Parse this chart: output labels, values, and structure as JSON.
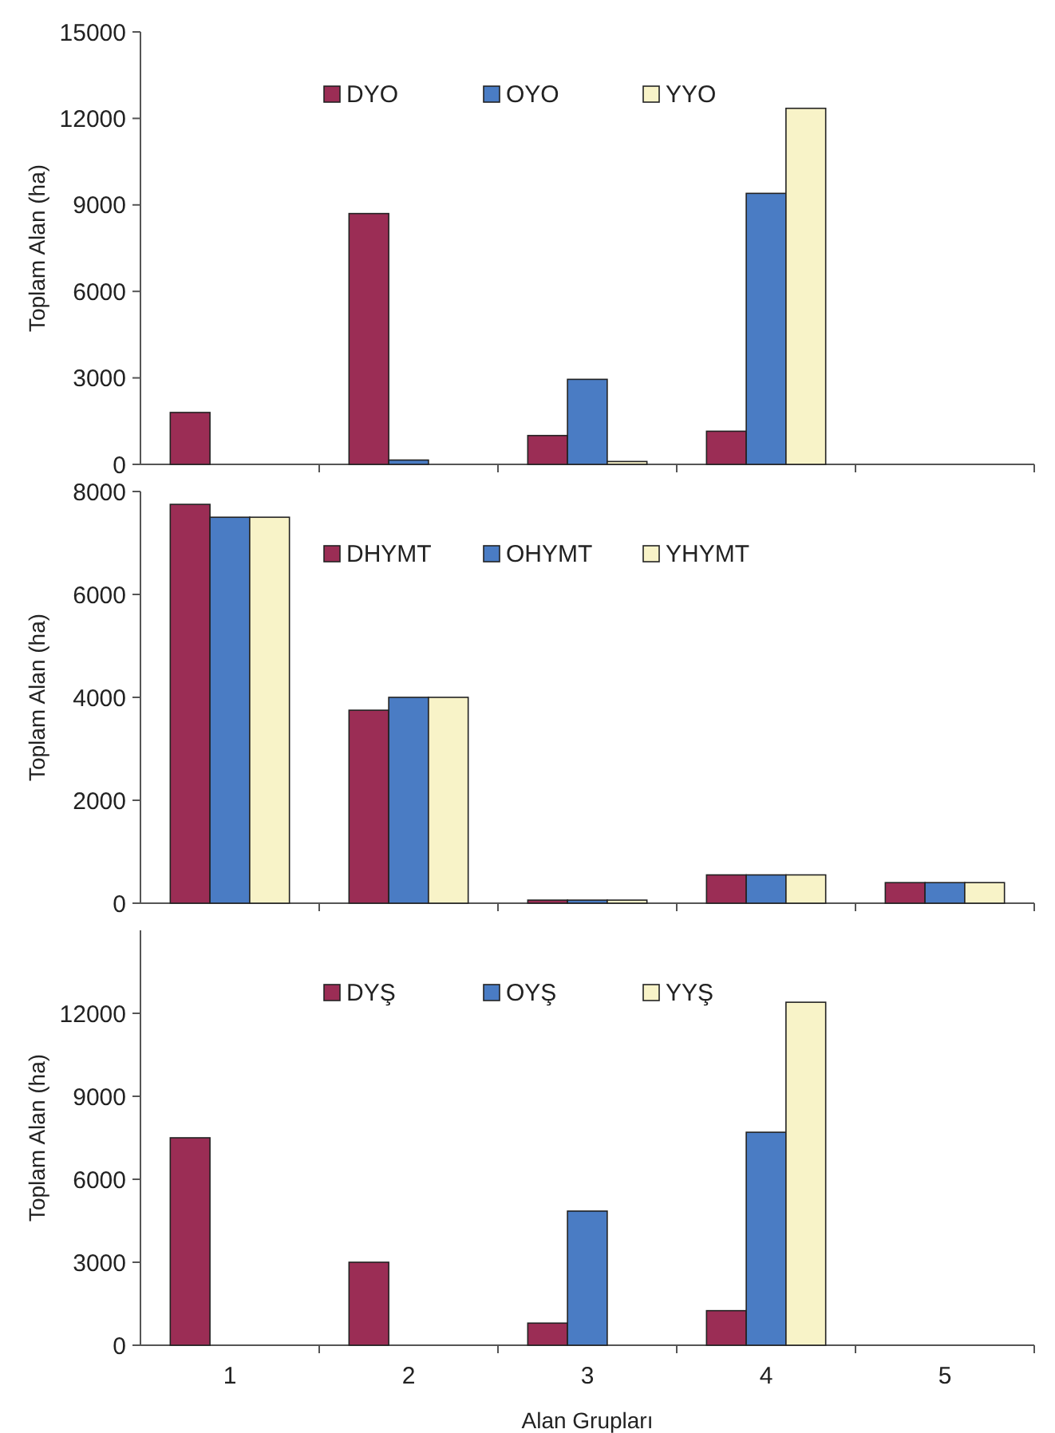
{
  "chart_data": [
    {
      "type": "bar",
      "ylabel": "Toplam Alan (ha)",
      "categories": [
        "1",
        "2",
        "3",
        "4",
        "5"
      ],
      "ylim": [
        0,
        15000
      ],
      "yticks": [
        0,
        3000,
        6000,
        9000,
        12000,
        15000
      ],
      "legend": "top",
      "tick_labels": "y",
      "series": [
        {
          "name": "DYO",
          "color": "#9b2d55",
          "values": [
            1800,
            8700,
            1000,
            1150,
            0
          ]
        },
        {
          "name": "OYO",
          "color": "#4a7cc4",
          "values": [
            0,
            150,
            2950,
            9400,
            0
          ]
        },
        {
          "name": "YYO",
          "color": "#f8f3c8",
          "values": [
            0,
            0,
            100,
            12350,
            0
          ]
        }
      ]
    },
    {
      "type": "bar",
      "ylabel": "Toplam Alan (ha)",
      "categories": [
        "1",
        "2",
        "3",
        "4",
        "5"
      ],
      "ylim": [
        0,
        8000
      ],
      "yticks": [
        0,
        2000,
        4000,
        6000,
        8000
      ],
      "legend": "top",
      "tick_labels": "y",
      "series": [
        {
          "name": "DHYMT",
          "color": "#9b2d55",
          "values": [
            7750,
            3750,
            60,
            550,
            400
          ]
        },
        {
          "name": "OHYMT",
          "color": "#4a7cc4",
          "values": [
            7500,
            4000,
            60,
            550,
            400
          ]
        },
        {
          "name": "YHYMT",
          "color": "#f8f3c8",
          "values": [
            7500,
            4000,
            60,
            550,
            400
          ]
        }
      ]
    },
    {
      "type": "bar",
      "ylabel": "Toplam Alan (ha)",
      "xlabel": "Alan Grupları",
      "categories": [
        "1",
        "2",
        "3",
        "4",
        "5"
      ],
      "ylim": [
        0,
        15000
      ],
      "yticks": [
        0,
        3000,
        6000,
        9000,
        12000
      ],
      "legend": "top",
      "series": [
        {
          "name": "DYŞ",
          "color": "#9b2d55",
          "values": [
            7500,
            3000,
            800,
            1250,
            0
          ]
        },
        {
          "name": "OYŞ",
          "color": "#4a7cc4",
          "values": [
            0,
            0,
            4850,
            7700,
            0
          ]
        },
        {
          "name": "YYŞ",
          "color": "#f8f3c8",
          "values": [
            0,
            0,
            0,
            12400,
            0
          ]
        }
      ]
    }
  ]
}
